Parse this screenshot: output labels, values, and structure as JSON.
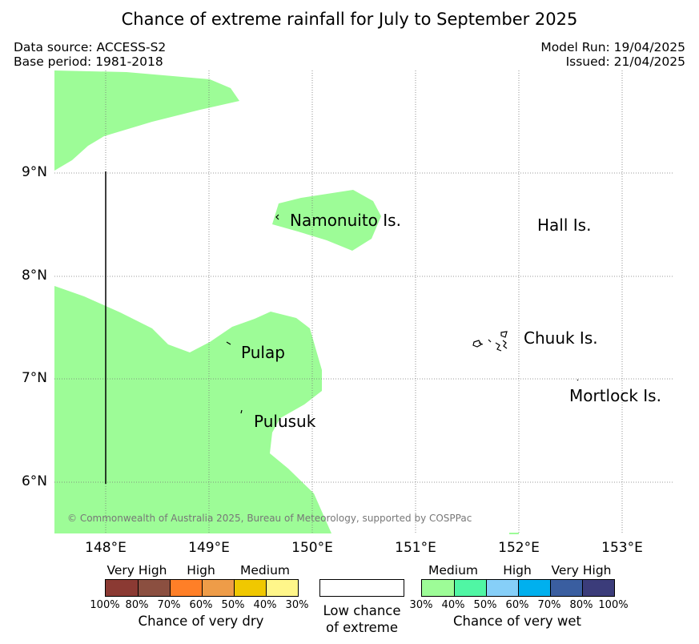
{
  "header": {
    "title": "Chance of extreme rainfall for July to September 2025",
    "data_source": "Data source: ACCESS-S2",
    "base_period": "Base period: 1981-2018",
    "model_run": "Model Run: 19/04/2025",
    "issued": "Issued: 21/04/2025"
  },
  "map": {
    "latitude_labels": [
      "9°N",
      "8°N",
      "7°N",
      "6°N"
    ],
    "longitude_labels": [
      "148°E",
      "149°E",
      "150°E",
      "151°E",
      "152°E",
      "153°E"
    ],
    "places": [
      "Namonuito Is.",
      "Hall Is.",
      "Pulap",
      "Chuuk Is.",
      "Pulusuk",
      "Mortlock Is."
    ],
    "wet_fill_color": "#9dfc97",
    "copyright": "© Commonwealth of Australia 2025, Bureau of Meteorology, supported by COSPPac"
  },
  "legend": {
    "dry": {
      "categories": [
        "Very High",
        "High",
        "Medium"
      ],
      "colors": [
        "#8b3a33",
        "#8b4f40",
        "#ff7f27",
        "#ee9c48",
        "#f0c800",
        "#fff68a"
      ],
      "percent_labels": [
        "100%",
        "80%",
        "70%",
        "60%",
        "50%",
        "40%",
        "30%"
      ],
      "title": "Chance of very dry"
    },
    "low": {
      "line1": "Low chance",
      "line2": "of extreme"
    },
    "wet": {
      "categories": [
        "Medium",
        "High",
        "Very High"
      ],
      "colors": [
        "#9dfc97",
        "#50f6a4",
        "#86cff8",
        "#00b0ee",
        "#3a5ea0",
        "#3b3c7a"
      ],
      "percent_labels": [
        "30%",
        "40%",
        "50%",
        "60%",
        "70%",
        "80%",
        "100%"
      ],
      "title": "Chance of very wet"
    }
  }
}
